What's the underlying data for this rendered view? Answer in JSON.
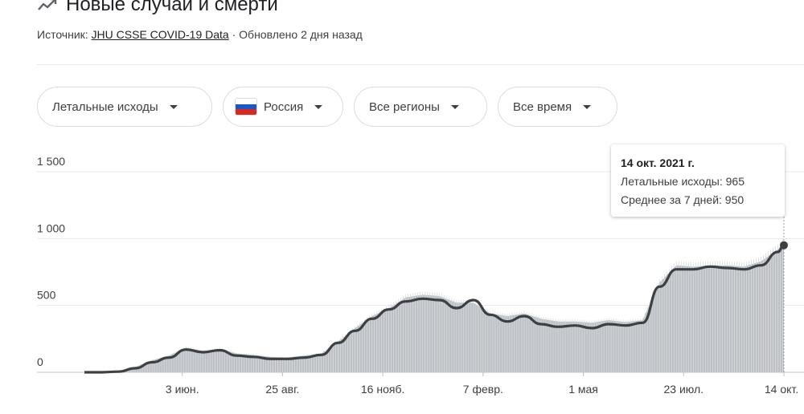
{
  "header": {
    "title": "Новые случаи и смерти",
    "source_prefix": "Источник:",
    "source_link": "JHU CSSE COVID-19 Data",
    "updated": "· Обновлено 2 дня назад"
  },
  "filters": {
    "metric": "Летальные исходы",
    "country": "Россия",
    "region": "Все регионы",
    "period": "Все время"
  },
  "flag_colors": [
    "#ffffff",
    "#1c57c9",
    "#d52b1e"
  ],
  "tooltip": {
    "date": "14 окт. 2021 г.",
    "line1": "Летальные исходы: 965",
    "line2": "Среднее за 7 дней: 950"
  },
  "chart_data": {
    "type": "area",
    "title": "",
    "xlabel": "",
    "ylabel": "",
    "ylim": [
      0,
      1500
    ],
    "yticks": [
      0,
      500,
      1000,
      1500
    ],
    "ytick_labels": [
      "0",
      "500",
      "1 000",
      "1 500"
    ],
    "grid": true,
    "x_tick_labels": [
      "3 июн.",
      "25 авг.",
      "16 нояб.",
      "7 февр.",
      "1 мая",
      "23 июл.",
      "14 окт."
    ],
    "x_tick_dates": [
      "2020-06-03",
      "2020-08-25",
      "2020-11-16",
      "2021-02-07",
      "2021-05-01",
      "2021-07-23",
      "2021-10-14"
    ],
    "x_range": [
      "2020-03-14",
      "2021-10-14"
    ],
    "series": [
      {
        "name": "Летальные исходы",
        "render": "daily-bars",
        "color": "#bdc1c6",
        "x": [
          "2020-03-14",
          "2020-03-28",
          "2020-04-11",
          "2020-04-25",
          "2020-05-09",
          "2020-05-23",
          "2020-06-06",
          "2020-06-20",
          "2020-07-04",
          "2020-07-18",
          "2020-08-01",
          "2020-08-15",
          "2020-08-29",
          "2020-09-12",
          "2020-09-26",
          "2020-10-10",
          "2020-10-24",
          "2020-11-07",
          "2020-11-21",
          "2020-12-05",
          "2020-12-19",
          "2021-01-02",
          "2021-01-16",
          "2021-01-30",
          "2021-02-13",
          "2021-02-27",
          "2021-03-13",
          "2021-03-27",
          "2021-04-10",
          "2021-04-24",
          "2021-05-08",
          "2021-05-22",
          "2021-06-05",
          "2021-06-19",
          "2021-07-03",
          "2021-07-17",
          "2021-07-31",
          "2021-08-14",
          "2021-08-28",
          "2021-09-11",
          "2021-09-25",
          "2021-10-09",
          "2021-10-14"
        ],
        "values": [
          0,
          2,
          8,
          40,
          90,
          125,
          185,
          160,
          175,
          140,
          130,
          115,
          110,
          125,
          140,
          230,
          330,
          420,
          480,
          560,
          580,
          570,
          520,
          520,
          440,
          420,
          440,
          400,
          380,
          380,
          370,
          390,
          375,
          390,
          670,
          800,
          790,
          800,
          800,
          790,
          830,
          920,
          965
        ]
      },
      {
        "name": "Среднее за 7 дней",
        "render": "line",
        "color": "#3c4043",
        "x": [
          "2020-03-14",
          "2020-03-28",
          "2020-04-11",
          "2020-04-25",
          "2020-05-09",
          "2020-05-23",
          "2020-06-06",
          "2020-06-20",
          "2020-07-04",
          "2020-07-18",
          "2020-08-01",
          "2020-08-15",
          "2020-08-29",
          "2020-09-12",
          "2020-09-26",
          "2020-10-10",
          "2020-10-24",
          "2020-11-07",
          "2020-11-21",
          "2020-12-05",
          "2020-12-19",
          "2021-01-02",
          "2021-01-16",
          "2021-01-30",
          "2021-02-13",
          "2021-02-27",
          "2021-03-13",
          "2021-03-27",
          "2021-04-10",
          "2021-04-24",
          "2021-05-08",
          "2021-05-22",
          "2021-06-05",
          "2021-06-19",
          "2021-07-03",
          "2021-07-17",
          "2021-07-31",
          "2021-08-14",
          "2021-08-28",
          "2021-09-11",
          "2021-09-25",
          "2021-10-09",
          "2021-10-14"
        ],
        "values": [
          0,
          0,
          5,
          30,
          75,
          110,
          170,
          150,
          165,
          125,
          115,
          100,
          100,
          110,
          130,
          220,
          310,
          400,
          470,
          530,
          550,
          540,
          480,
          540,
          430,
          380,
          420,
          360,
          340,
          350,
          330,
          360,
          350,
          370,
          640,
          770,
          770,
          790,
          780,
          770,
          800,
          900,
          950
        ]
      }
    ]
  }
}
